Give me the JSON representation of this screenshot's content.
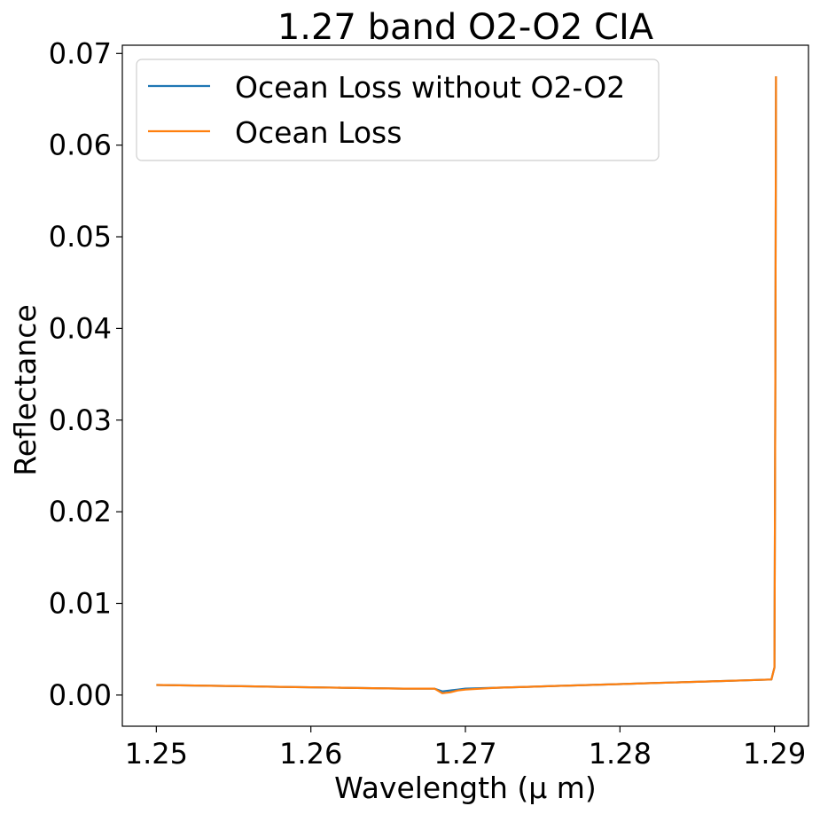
{
  "chart_data": {
    "type": "line",
    "title": "1.27 band O2-O2 CIA",
    "xlabel": "Wavelength (μ m)",
    "ylabel": "Reflectance",
    "xlim": [
      1.2478,
      1.2922
    ],
    "ylim": [
      -0.0034,
      0.0709
    ],
    "xticks": [
      1.25,
      1.26,
      1.27,
      1.28,
      1.29
    ],
    "xtick_labels": [
      "1.25",
      "1.26",
      "1.27",
      "1.28",
      "1.29"
    ],
    "yticks": [
      0.0,
      0.01,
      0.02,
      0.03,
      0.04,
      0.05,
      0.06,
      0.07
    ],
    "ytick_labels": [
      "0.00",
      "0.01",
      "0.02",
      "0.03",
      "0.04",
      "0.05",
      "0.06",
      "0.07"
    ],
    "grid": false,
    "legend_position": "upper-left",
    "series": [
      {
        "name": "Ocean Loss without O2-O2",
        "color": "#1f77b4",
        "x": [
          1.25,
          1.252,
          1.254,
          1.256,
          1.258,
          1.26,
          1.262,
          1.264,
          1.266,
          1.268,
          1.2685,
          1.269,
          1.2695,
          1.27,
          1.272,
          1.274,
          1.276,
          1.278,
          1.28,
          1.282,
          1.284,
          1.286,
          1.288,
          1.2898,
          1.29,
          1.29005,
          1.2901
        ],
        "y": [
          0.0011,
          0.00105,
          0.001,
          0.00095,
          0.0009,
          0.00085,
          0.0008,
          0.00075,
          0.0007,
          0.0007,
          0.0004,
          0.0005,
          0.0006,
          0.0007,
          0.0008,
          0.0009,
          0.001,
          0.0011,
          0.0012,
          0.0013,
          0.0014,
          0.0015,
          0.0016,
          0.0017,
          0.003,
          0.03,
          0.0675
        ]
      },
      {
        "name": "Ocean Loss",
        "color": "#ff7f0e",
        "x": [
          1.25,
          1.252,
          1.254,
          1.256,
          1.258,
          1.26,
          1.262,
          1.264,
          1.266,
          1.268,
          1.2685,
          1.269,
          1.2695,
          1.27,
          1.272,
          1.274,
          1.276,
          1.278,
          1.28,
          1.282,
          1.284,
          1.286,
          1.288,
          1.2898,
          1.29,
          1.29005,
          1.2901
        ],
        "y": [
          0.0011,
          0.00105,
          0.001,
          0.00095,
          0.0009,
          0.00085,
          0.0008,
          0.00075,
          0.0007,
          0.0007,
          0.0002,
          0.0003,
          0.0005,
          0.0006,
          0.0008,
          0.0009,
          0.001,
          0.0011,
          0.0012,
          0.0013,
          0.0014,
          0.0015,
          0.0016,
          0.0017,
          0.003,
          0.03,
          0.0675
        ]
      }
    ]
  }
}
